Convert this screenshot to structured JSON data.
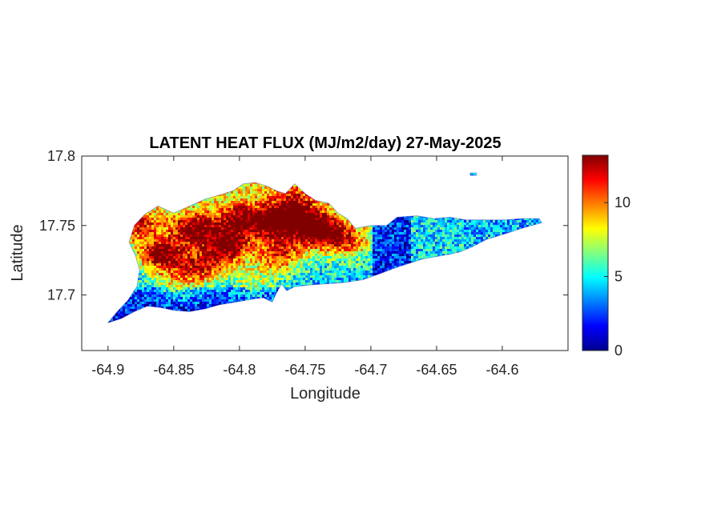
{
  "chart_data": {
    "type": "heatmap",
    "title": "LATENT HEAT FLUX (MJ/m2/day) 27-May-2025",
    "xlabel": "Longitude",
    "ylabel": "Latitude",
    "xlim": [
      -64.92,
      -64.55
    ],
    "ylim": [
      17.66,
      17.8
    ],
    "xticks": [
      -64.9,
      -64.85,
      -64.8,
      -64.75,
      -64.7,
      -64.65,
      -64.6
    ],
    "xtick_labels": [
      "-64.9",
      "-64.85",
      "-64.8",
      "-64.75",
      "-64.7",
      "-64.65",
      "-64.6"
    ],
    "yticks": [
      17.7,
      17.75,
      17.8
    ],
    "ytick_labels": [
      "17.7",
      "17.75",
      "17.8"
    ],
    "colorbar": {
      "colormap": "jet",
      "range": [
        0,
        13.2
      ],
      "ticks": [
        0,
        5,
        10
      ],
      "tick_labels": [
        "0",
        "5",
        "10"
      ]
    },
    "region_outline_lonlat": [
      [
        -64.9,
        17.68
      ],
      [
        -64.893,
        17.688
      ],
      [
        -64.885,
        17.696
      ],
      [
        -64.878,
        17.706
      ],
      [
        -64.876,
        17.718
      ],
      [
        -64.879,
        17.728
      ],
      [
        -64.884,
        17.738
      ],
      [
        -64.88,
        17.75
      ],
      [
        -64.872,
        17.758
      ],
      [
        -64.862,
        17.764
      ],
      [
        -64.85,
        17.759
      ],
      [
        -64.838,
        17.764
      ],
      [
        -64.826,
        17.769
      ],
      [
        -64.815,
        17.772
      ],
      [
        -64.805,
        17.775
      ],
      [
        -64.797,
        17.78
      ],
      [
        -64.788,
        17.781
      ],
      [
        -64.778,
        17.778
      ],
      [
        -64.772,
        17.775
      ],
      [
        -64.765,
        17.773
      ],
      [
        -64.758,
        17.78
      ],
      [
        -64.75,
        17.773
      ],
      [
        -64.742,
        17.768
      ],
      [
        -64.732,
        17.766
      ],
      [
        -64.725,
        17.759
      ],
      [
        -64.718,
        17.755
      ],
      [
        -64.712,
        17.748
      ],
      [
        -64.7,
        17.75
      ],
      [
        -64.688,
        17.75
      ],
      [
        -64.68,
        17.756
      ],
      [
        -64.665,
        17.757
      ],
      [
        -64.652,
        17.755
      ],
      [
        -64.64,
        17.756
      ],
      [
        -64.628,
        17.754
      ],
      [
        -64.612,
        17.754
      ],
      [
        -64.598,
        17.754
      ],
      [
        -64.585,
        17.755
      ],
      [
        -64.572,
        17.755
      ],
      [
        -64.57,
        17.752
      ],
      [
        -64.585,
        17.748
      ],
      [
        -64.598,
        17.744
      ],
      [
        -64.612,
        17.74
      ],
      [
        -64.622,
        17.735
      ],
      [
        -64.632,
        17.731
      ],
      [
        -64.642,
        17.729
      ],
      [
        -64.66,
        17.726
      ],
      [
        -64.68,
        17.72
      ],
      [
        -64.694,
        17.715
      ],
      [
        -64.706,
        17.711
      ],
      [
        -64.72,
        17.709
      ],
      [
        -64.735,
        17.708
      ],
      [
        -64.748,
        17.707
      ],
      [
        -64.758,
        17.706
      ],
      [
        -64.764,
        17.703
      ],
      [
        -64.768,
        17.708
      ],
      [
        -64.772,
        17.701
      ],
      [
        -64.775,
        17.695
      ],
      [
        -64.782,
        17.698
      ],
      [
        -64.79,
        17.697
      ],
      [
        -64.802,
        17.695
      ],
      [
        -64.815,
        17.693
      ],
      [
        -64.826,
        17.69
      ],
      [
        -64.838,
        17.688
      ],
      [
        -64.85,
        17.689
      ],
      [
        -64.86,
        17.691
      ],
      [
        -64.87,
        17.692
      ],
      [
        -64.88,
        17.688
      ],
      [
        -64.89,
        17.683
      ],
      [
        -64.9,
        17.68
      ]
    ],
    "islet_lonlat": [
      -64.622,
      17.787
    ],
    "hotspots": [
      {
        "lon": -64.86,
        "lat": 17.73,
        "value": 12.3
      },
      {
        "lon": -64.835,
        "lat": 17.748,
        "value": 11.2
      },
      {
        "lon": -64.81,
        "lat": 17.735,
        "value": 11.8
      },
      {
        "lon": -64.8,
        "lat": 17.755,
        "value": 10.5
      },
      {
        "lon": -64.772,
        "lat": 17.752,
        "value": 11.0
      },
      {
        "lon": -64.742,
        "lat": 17.748,
        "value": 12.8
      },
      {
        "lon": -64.77,
        "lat": 17.73,
        "value": 10.2
      },
      {
        "lon": -64.88,
        "lat": 17.752,
        "value": 9.5
      },
      {
        "lon": -64.85,
        "lat": 17.71,
        "value": 7.5
      },
      {
        "lon": -64.79,
        "lat": 17.71,
        "value": 7.0
      },
      {
        "lon": -64.72,
        "lat": 17.74,
        "value": 9.0
      },
      {
        "lon": -64.76,
        "lat": 17.765,
        "value": 9.0
      },
      {
        "lon": -64.83,
        "lat": 17.72,
        "value": 10.0
      }
    ],
    "east_mean_values": [
      {
        "lon_from": -64.7,
        "lon_to": -64.67,
        "value": 2.0
      },
      {
        "lon_from": -64.67,
        "lon_to": -64.63,
        "value": 4.7
      },
      {
        "lon_from": -64.63,
        "lon_to": -64.57,
        "value": 4.2
      }
    ]
  }
}
